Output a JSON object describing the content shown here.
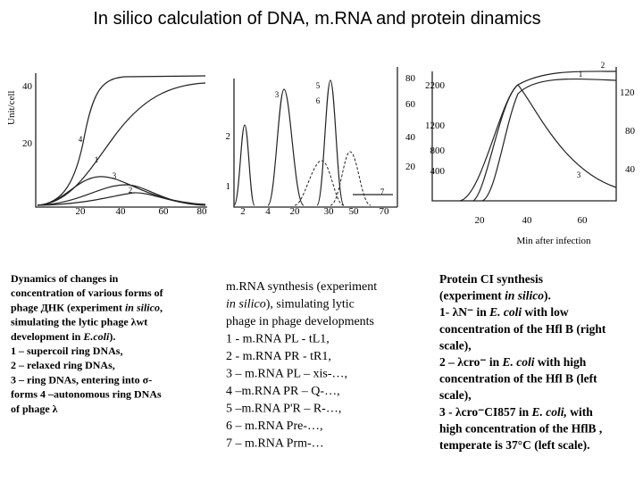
{
  "title": "In silico calculation  of DNA, m.RNA and protein dinamics",
  "y_label": "Unit/cell",
  "x_label": "Min after infection",
  "panels": [
    {
      "yticks": [
        "40",
        "20"
      ],
      "xticks": [
        "20",
        "40",
        "60",
        "80"
      ],
      "curve_labels": [
        "4",
        "1",
        "3",
        "2"
      ]
    },
    {
      "yticks": [
        "2",
        "1"
      ],
      "y2ticks": [
        "80",
        "60",
        "40",
        "20"
      ],
      "xticks": [
        "2",
        "4",
        "20",
        "30",
        "50",
        "70"
      ],
      "curve_labels": [
        "3",
        "5",
        "6",
        "7"
      ]
    },
    {
      "yticks": [
        "2200",
        "1200",
        "800",
        "400"
      ],
      "y2ticks": [
        "120",
        "80",
        "40"
      ],
      "xticks": [
        "20",
        "40",
        "60"
      ],
      "curve_labels": [
        "2",
        "1",
        "3"
      ]
    }
  ],
  "captions": [
    [
      [
        "Dynamics of changes in"
      ],
      [
        "concentration of various forms of"
      ],
      [
        "phage ДНК (experiment ",
        {
          "i": "in silico"
        },
        ","
      ],
      [
        "simulating the lytic phage λwt"
      ],
      [
        "development in ",
        {
          "i": "E.coli"
        },
        ")."
      ],
      [
        "1 – supercoil ring DNAs,"
      ],
      [
        "2 – relaxed ring DNAs,"
      ],
      [
        "3 – ring DNAs, entering into σ-"
      ],
      [
        "forms 4 –autonomous ring DNAs"
      ],
      [
        "of phage λ"
      ]
    ],
    [
      [
        "m.RNA synthesis (experiment"
      ],
      [
        {
          "i": "in silico"
        },
        "), simulating lytic"
      ],
      [
        "phage in phage developments"
      ],
      [
        "1 - m.RNA PL - tL1,"
      ],
      [
        "2 - m.RNA PR - tR1,"
      ],
      [
        "3 – m.RNA PL – xis-…,"
      ],
      [
        "4 –m.RNA PR – Q-…,"
      ],
      [
        "5 –m.RNA P'R – R-…,"
      ],
      [
        "6 – m.RNA Pre-…,"
      ],
      [
        "7 – m.RNA Prm-…"
      ]
    ],
    [
      [
        "Protein CI synthesis"
      ],
      [
        "(experiment ",
        {
          "i": "in silico"
        },
        ")."
      ],
      [
        "1- λN⁻ in ",
        {
          "i": "E. coli"
        },
        " with low"
      ],
      [
        "concentration of the Hfl B (right"
      ],
      [
        "scale),"
      ],
      [
        "2 – λcro⁻ in ",
        {
          "i": "E. coli"
        },
        " with high"
      ],
      [
        "concentration of the Hfl B (left"
      ],
      [
        "scale),"
      ],
      [
        "3 - λcro⁻CI857 in ",
        {
          "i": "E. coli,"
        },
        " with"
      ],
      [
        "high concentration of the HflB ,"
      ],
      [
        "temperate is 37°C (left  scale)."
      ]
    ]
  ]
}
